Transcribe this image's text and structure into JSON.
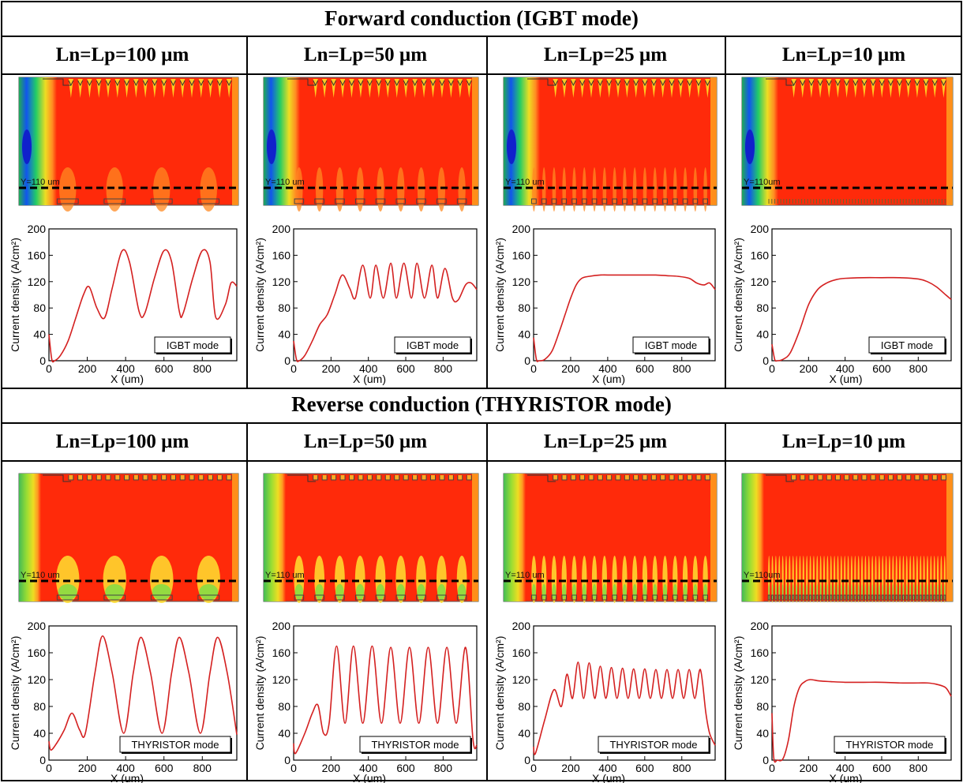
{
  "sections": [
    {
      "title": "Forward conduction (IGBT mode)",
      "columns": [
        "Ln=Lp=100 µm",
        "Ln=Lp=50 µm",
        "Ln=Lp=25 µm",
        "Ln=Lp=10 µm"
      ],
      "cut_labels": [
        "Y=110 um",
        "Y=110 um",
        "Y=110 um",
        "Y=110um"
      ],
      "legend": "IGBT mode"
    },
    {
      "title": "Reverse conduction (THYRISTOR mode)",
      "columns": [
        "Ln=Lp=100 µm",
        "Ln=Lp=50 µm",
        "Ln=Lp=25 µm",
        "Ln=Lp=10 µm"
      ],
      "cut_labels": [
        "Y=110 um",
        "Y=110 um",
        "Y=110 um",
        "Y=110um"
      ],
      "legend": "THYRISTOR mode"
    }
  ],
  "colors": {
    "contour_red": "#ff2a0a",
    "curve": "#d42020",
    "cut_line": "#000000"
  },
  "chart_data": [
    {
      "type": "line",
      "mode": "IGBT mode",
      "cell": "Ln=Lp=100 µm",
      "xlabel": "X (um)",
      "ylabel": "Current density (A/cm²)",
      "xlim": [
        0,
        980
      ],
      "ylim": [
        0,
        200
      ],
      "xticks": [
        "0",
        "200",
        "400",
        "600",
        "800"
      ],
      "yticks": [
        "0",
        "40",
        "80",
        "120",
        "160",
        "200"
      ],
      "x": [
        0,
        15,
        30,
        60,
        100,
        140,
        180,
        210,
        250,
        290,
        330,
        380,
        420,
        470,
        500,
        550,
        600,
        640,
        680,
        700,
        750,
        800,
        840,
        870,
        920,
        950,
        980
      ],
      "y": [
        40,
        2,
        0,
        8,
        30,
        65,
        100,
        112,
        80,
        65,
        110,
        166,
        150,
        75,
        72,
        125,
        167,
        150,
        75,
        72,
        125,
        167,
        150,
        66,
        85,
        118,
        113
      ]
    },
    {
      "type": "line",
      "mode": "IGBT mode",
      "cell": "Ln=Lp=50 µm",
      "xlabel": "X (um)",
      "ylabel": "Current density (A/cm²)",
      "xlim": [
        0,
        980
      ],
      "ylim": [
        0,
        200
      ],
      "xticks": [
        "0",
        "200",
        "400",
        "600",
        "800"
      ],
      "yticks": [
        "0",
        "40",
        "80",
        "120",
        "160",
        "200"
      ],
      "x": [
        0,
        15,
        30,
        60,
        100,
        140,
        180,
        220,
        260,
        300,
        330,
        370,
        410,
        440,
        480,
        520,
        550,
        590,
        630,
        660,
        700,
        740,
        770,
        810,
        850,
        880,
        920,
        950,
        980
      ],
      "y": [
        30,
        2,
        0,
        8,
        30,
        55,
        70,
        100,
        130,
        110,
        95,
        145,
        95,
        145,
        95,
        148,
        95,
        148,
        95,
        148,
        95,
        145,
        95,
        140,
        95,
        92,
        115,
        118,
        108
      ]
    },
    {
      "type": "line",
      "mode": "IGBT mode",
      "cell": "Ln=Lp=25 µm",
      "xlabel": "X (um)",
      "ylabel": "Current density (A/cm²)",
      "xlim": [
        0,
        980
      ],
      "ylim": [
        0,
        200
      ],
      "xticks": [
        "0",
        "200",
        "400",
        "600",
        "800"
      ],
      "yticks": [
        "0",
        "40",
        "80",
        "120",
        "160",
        "200"
      ],
      "x": [
        0,
        15,
        30,
        60,
        100,
        140,
        170,
        200,
        230,
        260,
        300,
        360,
        420,
        480,
        540,
        600,
        660,
        720,
        780,
        840,
        880,
        920,
        950,
        980
      ],
      "y": [
        35,
        2,
        0,
        2,
        15,
        45,
        70,
        95,
        115,
        125,
        128,
        130,
        130,
        130,
        130,
        130,
        130,
        129,
        128,
        125,
        118,
        115,
        118,
        108
      ]
    },
    {
      "type": "line",
      "mode": "IGBT mode",
      "cell": "Ln=Lp=10 µm",
      "xlabel": "X (um)",
      "ylabel": "Current density (A/cm²)",
      "xlim": [
        0,
        980
      ],
      "ylim": [
        0,
        200
      ],
      "xticks": [
        "0",
        "200",
        "400",
        "600",
        "800"
      ],
      "yticks": [
        "0",
        "40",
        "80",
        "120",
        "160",
        "200"
      ],
      "x": [
        0,
        15,
        30,
        60,
        100,
        150,
        200,
        250,
        300,
        350,
        400,
        500,
        600,
        700,
        800,
        850,
        900,
        950,
        980
      ],
      "y": [
        25,
        2,
        0,
        2,
        12,
        45,
        85,
        108,
        118,
        123,
        125,
        126,
        126,
        126,
        124,
        120,
        112,
        100,
        93
      ]
    },
    {
      "type": "line",
      "mode": "THYRISTOR mode",
      "cell": "Ln=Lp=100 µm",
      "xlabel": "X (um)",
      "ylabel": "Current density (A/cm²)",
      "xlim": [
        0,
        980
      ],
      "ylim": [
        0,
        200
      ],
      "xticks": [
        "0",
        "200",
        "400",
        "600",
        "800"
      ],
      "yticks": [
        "0",
        "40",
        "80",
        "120",
        "160",
        "200"
      ],
      "x": [
        0,
        10,
        40,
        80,
        120,
        160,
        190,
        240,
        280,
        330,
        390,
        440,
        480,
        530,
        590,
        640,
        680,
        730,
        790,
        840,
        880,
        930,
        980
      ],
      "y": [
        28,
        15,
        25,
        45,
        70,
        45,
        40,
        130,
        185,
        130,
        40,
        130,
        183,
        130,
        40,
        130,
        183,
        130,
        40,
        130,
        183,
        130,
        38
      ]
    },
    {
      "type": "line",
      "mode": "THYRISTOR mode",
      "cell": "Ln=Lp=50 µm",
      "xlabel": "X (um)",
      "ylabel": "Current density (A/cm²)",
      "xlim": [
        0,
        980
      ],
      "ylim": [
        0,
        200
      ],
      "xticks": [
        "0",
        "200",
        "400",
        "600",
        "800"
      ],
      "yticks": [
        "0",
        "40",
        "80",
        "120",
        "160",
        "200"
      ],
      "x": [
        0,
        10,
        60,
        100,
        130,
        160,
        190,
        230,
        275,
        320,
        370,
        420,
        470,
        520,
        570,
        620,
        670,
        720,
        770,
        820,
        870,
        920,
        960,
        980
      ],
      "y": [
        25,
        10,
        40,
        70,
        82,
        40,
        55,
        170,
        55,
        170,
        55,
        170,
        55,
        168,
        55,
        168,
        55,
        168,
        55,
        168,
        55,
        168,
        30,
        22
      ]
    },
    {
      "type": "line",
      "mode": "THYRISTOR mode",
      "cell": "Ln=Lp=25 µm",
      "xlabel": "X (um)",
      "ylabel": "Current density (A/cm²)",
      "xlim": [
        0,
        980
      ],
      "ylim": [
        0,
        200
      ],
      "xticks": [
        "0",
        "200",
        "400",
        "600",
        "800"
      ],
      "yticks": [
        "0",
        "40",
        "80",
        "120",
        "160",
        "200"
      ],
      "x": [
        0,
        10,
        60,
        110,
        150,
        180,
        210,
        240,
        270,
        300,
        330,
        360,
        390,
        420,
        450,
        480,
        510,
        540,
        570,
        600,
        630,
        660,
        690,
        720,
        750,
        780,
        810,
        840,
        870,
        900,
        930,
        950,
        980
      ],
      "y": [
        20,
        10,
        60,
        105,
        80,
        128,
        92,
        146,
        92,
        145,
        92,
        140,
        92,
        138,
        92,
        137,
        92,
        136,
        92,
        136,
        92,
        135,
        92,
        135,
        92,
        135,
        92,
        135,
        92,
        135,
        70,
        40,
        22
      ]
    },
    {
      "type": "line",
      "mode": "THYRISTOR mode",
      "cell": "Ln=Lp=10 µm",
      "xlabel": "X (um)",
      "ylabel": "Current density (A/cm²)",
      "xlim": [
        0,
        980
      ],
      "ylim": [
        0,
        200
      ],
      "xticks": [
        "0",
        "200",
        "400",
        "600",
        "800"
      ],
      "yticks": [
        "0",
        "40",
        "80",
        "120",
        "160",
        "200"
      ],
      "x": [
        0,
        10,
        30,
        60,
        90,
        120,
        150,
        180,
        210,
        260,
        320,
        400,
        500,
        600,
        700,
        800,
        850,
        900,
        950,
        980
      ],
      "y": [
        70,
        3,
        0,
        2,
        30,
        80,
        108,
        117,
        120,
        118,
        117,
        116,
        116,
        116,
        115,
        115,
        115,
        113,
        108,
        95
      ]
    }
  ]
}
